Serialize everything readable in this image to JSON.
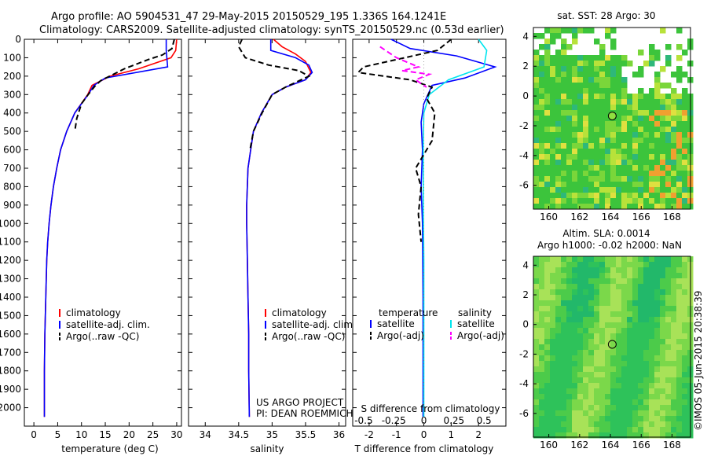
{
  "header": {
    "line1": "Argo profile: AO 5904531_47 29-May-2015 20150529_195 1.336S 164.1241E",
    "line2": "Climatology: CARS2009. Satellite-adjusted climatology: synTS_20150529.nc (0.53d earlier)"
  },
  "credit": "©IMOS 05-Jun-2015 20:38:39",
  "project": {
    "line1": "US ARGO PROJECT",
    "line2": "PI: DEAN ROEMMICH"
  },
  "colors": {
    "clim": "#ff0000",
    "sat": "#0000ff",
    "argo": "#000000",
    "sat_s": "#00e5ee",
    "argo_s": "#ff00ff"
  },
  "chart_data": [
    {
      "type": "line",
      "id": "temperature",
      "xlabel": "temperature (deg C)",
      "ylabel": "",
      "xlim": [
        -2,
        31
      ],
      "ylim": [
        2100,
        0
      ],
      "xticks": [
        0,
        5,
        10,
        15,
        20,
        25,
        30
      ],
      "yticks": [
        0,
        100,
        200,
        300,
        400,
        500,
        600,
        700,
        800,
        900,
        1000,
        1100,
        1200,
        1300,
        1400,
        1500,
        1600,
        1700,
        1800,
        1900,
        2000
      ],
      "legend": [
        "climatology",
        "satellite-adj. clim.",
        "Argo(..raw -QC)"
      ],
      "series": [
        {
          "name": "climatology",
          "color": "#ff0000",
          "dash": "solid",
          "x": [
            30.0,
            29.8,
            28.8,
            22.0,
            16.0,
            12.2,
            11.3,
            8.6,
            6.9,
            5.6,
            4.8,
            4.1,
            3.6,
            3.2,
            2.9,
            2.7,
            2.5,
            2.3,
            2.2,
            2.2
          ],
          "y": [
            0,
            60,
            100,
            160,
            200,
            250,
            300,
            400,
            500,
            600,
            700,
            800,
            900,
            1000,
            1100,
            1200,
            1400,
            1600,
            1800,
            2050
          ]
        },
        {
          "name": "satellite-adj. clim.",
          "color": "#0000ff",
          "dash": "solid",
          "x": [
            27.8,
            27.8,
            28.1,
            15.0,
            12.6,
            11.4,
            8.6,
            6.9,
            5.6,
            4.8,
            4.1,
            3.6,
            3.2,
            2.9,
            2.7,
            2.5,
            2.3,
            2.2,
            2.2
          ],
          "y": [
            0,
            60,
            150,
            210,
            250,
            300,
            400,
            500,
            600,
            700,
            800,
            900,
            1000,
            1100,
            1200,
            1400,
            1600,
            1800,
            2050
          ]
        },
        {
          "name": "Argo(..raw -QC)",
          "color": "#000000",
          "dash": "dashed",
          "x": [
            29.5,
            29.0,
            27.0,
            24.0,
            19.0,
            14.0,
            12.8,
            11.4,
            10.0,
            9.0,
            8.6
          ],
          "y": [
            0,
            50,
            85,
            110,
            160,
            225,
            255,
            300,
            350,
            430,
            500
          ]
        }
      ]
    },
    {
      "type": "line",
      "id": "salinity",
      "xlabel": "salinity",
      "ylabel": "",
      "xlim": [
        33.75,
        36.1
      ],
      "ylim": [
        2100,
        0
      ],
      "xticks": [
        34,
        34.5,
        35,
        35.5,
        36
      ],
      "legend": [
        "climatology",
        "satellite-adj. clim.",
        "Argo(..raw -QC)"
      ],
      "series": [
        {
          "name": "climatology",
          "color": "#ff0000",
          "dash": "solid",
          "x": [
            35.02,
            35.15,
            35.35,
            35.5,
            35.58,
            35.5,
            35.2,
            35.0,
            34.84,
            34.72,
            34.68,
            34.64,
            34.62,
            34.62,
            34.63,
            34.64,
            34.65,
            34.65,
            34.66
          ],
          "y": [
            0,
            40,
            80,
            120,
            180,
            220,
            260,
            300,
            400,
            500,
            600,
            700,
            900,
            1000,
            1200,
            1400,
            1600,
            1800,
            2050
          ]
        },
        {
          "name": "satellite-adj. clim.",
          "color": "#0000ff",
          "dash": "solid",
          "x": [
            34.98,
            34.98,
            35.35,
            35.55,
            35.6,
            35.5,
            35.2,
            35.0,
            34.84,
            34.72,
            34.68,
            34.64,
            34.62,
            34.62,
            34.63,
            34.64,
            34.65,
            34.65,
            34.66
          ],
          "y": [
            0,
            60,
            100,
            140,
            180,
            220,
            260,
            300,
            400,
            500,
            600,
            700,
            900,
            1000,
            1200,
            1400,
            1600,
            1800,
            2050
          ]
        },
        {
          "name": "Argo(..raw -QC)",
          "color": "#000000",
          "dash": "dashed",
          "x": [
            34.55,
            34.5,
            34.6,
            34.95,
            35.4,
            35.55,
            35.2,
            35.0,
            34.85,
            34.72,
            34.67
          ],
          "y": [
            0,
            40,
            100,
            140,
            170,
            200,
            260,
            300,
            400,
            500,
            600
          ]
        }
      ]
    },
    {
      "type": "line",
      "id": "differences",
      "xlabel": "T difference from climatology",
      "x2label": "S difference from climatology",
      "xlim": [
        -2.6,
        3.0
      ],
      "ylim": [
        2100,
        0
      ],
      "xticks": [
        -2,
        -1,
        0,
        1,
        2
      ],
      "x2ticks": [
        "-0.5",
        "-0.25",
        "0",
        "0.25",
        "0.5"
      ],
      "legend": [
        "temperature",
        "satellite",
        "Argo(-adj)",
        "salinity",
        "satellite",
        "Argo(-adj)"
      ],
      "series": [
        {
          "name": "temperature satellite",
          "color": "#0000ff",
          "dash": "solid",
          "x": [
            -1.2,
            -0.5,
            1.2,
            2.6,
            1.5,
            0.3,
            0.0,
            -0.1,
            -0.05,
            -0.1,
            -0.05,
            -0.03,
            -0.03,
            -0.03
          ],
          "y": [
            0,
            50,
            90,
            150,
            210,
            250,
            350,
            450,
            600,
            800,
            1000,
            1400,
            1800,
            2050
          ]
        },
        {
          "name": "salinity satellite",
          "color": "#00e5ee",
          "dash": "solid",
          "x": [
            2.0,
            2.3,
            2.2,
            0.9,
            0.2,
            0.0,
            -0.02,
            -0.02,
            0.0,
            0.0,
            0.0
          ],
          "y": [
            0,
            60,
            150,
            220,
            300,
            400,
            600,
            900,
            1200,
            1600,
            2050
          ]
        },
        {
          "name": "temperature Argo(-adj)",
          "color": "#000000",
          "dash": "dashed",
          "x": [
            1.0,
            0.5,
            -2.2,
            -2.4,
            -0.5,
            0.3,
            0.1,
            0.4,
            0.3,
            -0.3,
            -0.1,
            -0.2,
            -0.1
          ],
          "y": [
            0,
            60,
            150,
            180,
            220,
            260,
            320,
            400,
            550,
            700,
            800,
            950,
            1100
          ]
        },
        {
          "name": "salinity Argo(-adj)",
          "color": "#ff00ff",
          "dash": "dashed",
          "x": [
            -1.6,
            -1.0,
            -0.2,
            -0.8,
            0.2,
            -0.3,
            0.1
          ],
          "y": [
            40,
            100,
            150,
            170,
            190,
            220,
            260
          ]
        }
      ]
    },
    {
      "type": "heatmap",
      "id": "sst-map",
      "title": "sat. SST: 28 Argo: 30",
      "xlim": [
        159,
        169.2
      ],
      "ylim": [
        -7.6,
        4.6
      ],
      "xticks": [
        160,
        162,
        164,
        166,
        168
      ],
      "yticks": [
        4,
        2,
        0,
        -2,
        -4,
        -6
      ],
      "argo_marker": {
        "lon": 164.12,
        "lat": -1.34
      }
    },
    {
      "type": "heatmap",
      "id": "sla-map",
      "title": "Altim. SLA: 0.0014",
      "subtitle": "Argo h1000: -0.02 h2000: NaN",
      "xlim": [
        159,
        169.2
      ],
      "ylim": [
        -7.6,
        4.6
      ],
      "xticks": [
        160,
        162,
        164,
        166,
        168
      ],
      "yticks": [
        4,
        2,
        0,
        -2,
        -4,
        -6
      ],
      "argo_marker": {
        "lon": 164.12,
        "lat": -1.34
      }
    }
  ]
}
